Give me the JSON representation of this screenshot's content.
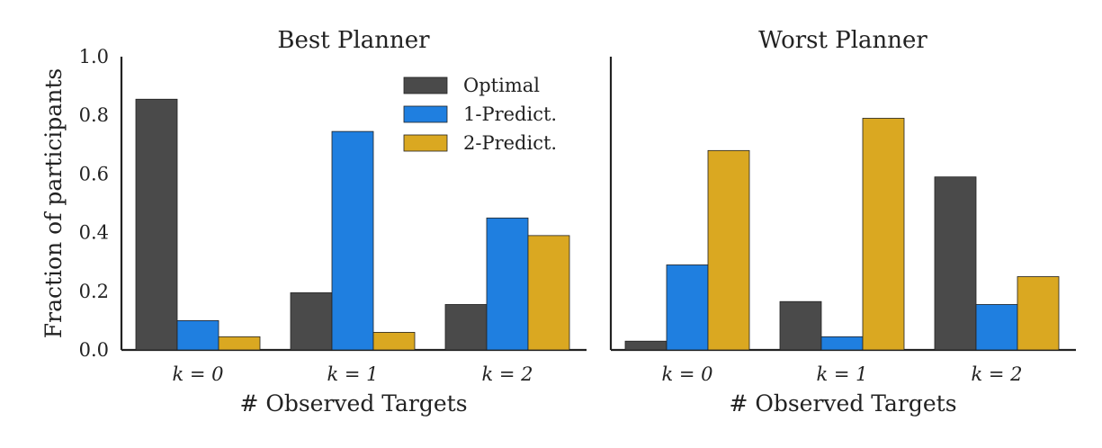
{
  "figure": {
    "ylabel": "Fraction of participants",
    "legend": {
      "placement": "upper-right of first panel",
      "entries": [
        "Optimal",
        "1-Predict.",
        "2-Predict."
      ]
    }
  },
  "colors": {
    "Optimal": "#4a4a4a",
    "1-Predict.": "#1f7fe0",
    "2-Predict.": "#daa821"
  },
  "chart_data": [
    {
      "type": "bar",
      "title": "Best Planner",
      "xlabel": "# Observed Targets",
      "ylabel": "Fraction of participants",
      "categories": [
        "k = 0",
        "k = 1",
        "k = 2"
      ],
      "ylim": [
        0,
        1.0
      ],
      "yticks": [
        "0.0",
        "0.2",
        "0.4",
        "0.6",
        "0.8",
        "1.0"
      ],
      "grid": false,
      "legend": "top-right",
      "series": [
        {
          "name": "Optimal",
          "values": [
            0.855,
            0.195,
            0.155
          ]
        },
        {
          "name": "1-Predict.",
          "values": [
            0.1,
            0.745,
            0.45
          ]
        },
        {
          "name": "2-Predict.",
          "values": [
            0.045,
            0.06,
            0.39
          ]
        }
      ]
    },
    {
      "type": "bar",
      "title": "Worst Planner",
      "xlabel": "# Observed Targets",
      "ylabel": "",
      "categories": [
        "k = 0",
        "k = 1",
        "k = 2"
      ],
      "ylim": [
        0,
        1.0
      ],
      "grid": false,
      "series": [
        {
          "name": "Optimal",
          "values": [
            0.03,
            0.165,
            0.59
          ]
        },
        {
          "name": "1-Predict.",
          "values": [
            0.29,
            0.045,
            0.155
          ]
        },
        {
          "name": "2-Predict.",
          "values": [
            0.68,
            0.79,
            0.25
          ]
        }
      ]
    }
  ]
}
